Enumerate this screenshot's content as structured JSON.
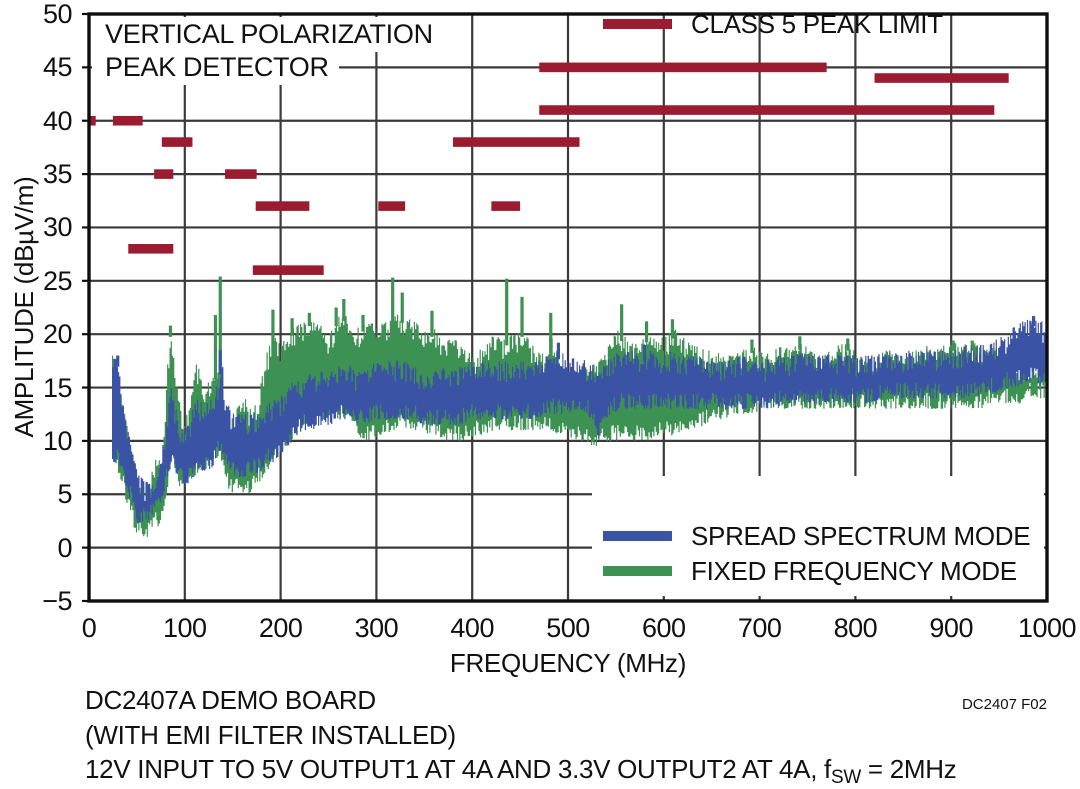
{
  "chart_data": {
    "type": "line",
    "title_lines": [
      "VERTICAL POLARIZATION",
      "PEAK DETECTOR"
    ],
    "xlabel": "FREQUENCY (MHz)",
    "ylabel": "AMPLITUDE (dBµV/m)",
    "xlim": [
      0,
      1000
    ],
    "ylim": [
      -5,
      50
    ],
    "x_ticks": [
      0,
      100,
      200,
      300,
      400,
      500,
      600,
      700,
      800,
      900,
      1000
    ],
    "y_ticks": [
      -5,
      0,
      5,
      10,
      15,
      20,
      25,
      30,
      35,
      40,
      45,
      50
    ],
    "y_tick_labels": [
      "−5",
      "0",
      "5",
      "10",
      "15",
      "20",
      "25",
      "30",
      "35",
      "40",
      "45",
      "50"
    ],
    "grid": true,
    "legend_position": "lower right",
    "legend": [
      {
        "label": "CLASS 5 PEAK LIMIT",
        "color": "#9B1B31"
      },
      {
        "label": "SPREAD SPECTRUM MODE",
        "color": "#3B53A5"
      },
      {
        "label": "FIXED FREQUENCY MODE",
        "color": "#3D9152"
      }
    ],
    "class5_peak_limit_segments": [
      {
        "f1": 0,
        "f2": 7,
        "level": 40
      },
      {
        "f1": 25,
        "f2": 56,
        "level": 40
      },
      {
        "f1": 41,
        "f2": 88,
        "level": 28
      },
      {
        "f1": 68,
        "f2": 88,
        "level": 35
      },
      {
        "f1": 76,
        "f2": 108,
        "level": 38
      },
      {
        "f1": 142,
        "f2": 175,
        "level": 35
      },
      {
        "f1": 171,
        "f2": 245,
        "level": 26
      },
      {
        "f1": 174,
        "f2": 230,
        "level": 32
      },
      {
        "f1": 302,
        "f2": 330,
        "level": 32
      },
      {
        "f1": 380,
        "f2": 512,
        "level": 38
      },
      {
        "f1": 420,
        "f2": 450,
        "level": 32
      },
      {
        "f1": 470,
        "f2": 770,
        "level": 45
      },
      {
        "f1": 470,
        "f2": 945,
        "level": 41
      },
      {
        "f1": 820,
        "f2": 960,
        "level": 44
      }
    ],
    "fixed_frequency_envelope": [
      [
        24,
        9,
        18
      ],
      [
        30,
        7,
        15
      ],
      [
        36,
        5,
        13
      ],
      [
        42,
        3,
        10
      ],
      [
        48,
        1.5,
        7
      ],
      [
        54,
        1,
        6
      ],
      [
        62,
        1,
        5.5
      ],
      [
        70,
        2,
        9.6
      ],
      [
        76,
        2,
        8
      ],
      [
        82,
        6,
        18
      ],
      [
        85,
        8,
        20.5
      ],
      [
        90,
        6,
        16
      ],
      [
        97,
        5,
        12
      ],
      [
        104,
        6,
        13
      ],
      [
        112,
        7,
        17.5
      ],
      [
        120,
        7,
        15
      ],
      [
        128,
        8,
        16
      ],
      [
        136,
        8,
        17
      ],
      [
        141,
        7,
        14
      ],
      [
        146,
        5,
        12
      ],
      [
        153,
        5,
        13
      ],
      [
        160,
        5,
        14.5
      ],
      [
        168,
        5,
        13
      ],
      [
        176,
        6,
        14
      ],
      [
        184,
        7,
        18
      ],
      [
        192,
        8,
        20
      ],
      [
        200,
        9,
        19
      ],
      [
        210,
        10,
        20.5
      ],
      [
        220,
        11,
        21
      ],
      [
        230,
        12,
        21.5
      ],
      [
        240,
        12,
        21
      ],
      [
        250,
        12,
        20
      ],
      [
        258,
        12,
        21.5
      ],
      [
        266,
        12,
        22
      ],
      [
        276,
        11,
        20.5
      ],
      [
        286,
        10,
        21
      ],
      [
        296,
        10,
        21
      ],
      [
        306,
        10.5,
        21
      ],
      [
        316,
        11,
        21.5
      ],
      [
        324,
        11,
        22
      ],
      [
        332,
        11,
        21.5
      ],
      [
        342,
        11,
        21
      ],
      [
        352,
        10.5,
        20.5
      ],
      [
        362,
        10.5,
        20.5
      ],
      [
        372,
        10,
        19.5
      ],
      [
        382,
        10,
        19.5
      ],
      [
        392,
        10,
        18.5
      ],
      [
        402,
        10.5,
        18
      ],
      [
        412,
        10.5,
        19
      ],
      [
        422,
        11,
        20
      ],
      [
        432,
        11,
        19.5
      ],
      [
        442,
        11,
        20
      ],
      [
        452,
        11,
        20.5
      ],
      [
        462,
        11,
        19
      ],
      [
        472,
        11,
        18
      ],
      [
        482,
        11,
        20
      ],
      [
        492,
        10.5,
        17
      ],
      [
        502,
        10,
        16.5
      ],
      [
        512,
        10,
        16
      ],
      [
        522,
        9.5,
        17
      ],
      [
        532,
        9.5,
        17.5
      ],
      [
        542,
        10,
        19
      ],
      [
        552,
        10,
        20.5
      ],
      [
        562,
        10,
        19.5
      ],
      [
        572,
        10,
        19.5
      ],
      [
        582,
        10,
        20
      ],
      [
        592,
        10.5,
        19.5
      ],
      [
        602,
        10.5,
        20
      ],
      [
        612,
        10.5,
        20.5
      ],
      [
        622,
        11,
        19.5
      ],
      [
        632,
        11,
        19
      ],
      [
        642,
        11.5,
        18.5
      ],
      [
        652,
        12,
        18.5
      ],
      [
        662,
        12,
        18
      ],
      [
        672,
        12.5,
        18
      ],
      [
        682,
        12.5,
        18.5
      ],
      [
        692,
        12.5,
        19
      ],
      [
        702,
        13,
        18.5
      ],
      [
        712,
        13,
        18.5
      ],
      [
        722,
        13,
        19
      ],
      [
        732,
        13,
        18.5
      ],
      [
        742,
        13,
        19.3
      ],
      [
        752,
        13,
        18.5
      ],
      [
        762,
        13,
        18
      ],
      [
        772,
        13,
        18.5
      ],
      [
        782,
        13,
        19
      ],
      [
        792,
        13,
        19.2
      ],
      [
        802,
        13,
        18
      ],
      [
        812,
        13,
        18
      ],
      [
        822,
        13,
        18
      ],
      [
        832,
        13,
        18.5
      ],
      [
        842,
        13,
        18
      ],
      [
        852,
        13,
        18
      ],
      [
        862,
        13,
        18.5
      ],
      [
        872,
        13,
        19
      ],
      [
        882,
        13,
        18.5
      ],
      [
        892,
        13,
        19
      ],
      [
        902,
        13,
        19.2
      ],
      [
        912,
        13,
        19
      ],
      [
        922,
        13,
        19.2
      ],
      [
        932,
        13,
        19
      ],
      [
        942,
        13.5,
        19
      ],
      [
        952,
        13.5,
        18.5
      ],
      [
        962,
        13.5,
        18
      ],
      [
        972,
        13.5,
        17.5
      ],
      [
        982,
        14,
        17.5
      ],
      [
        1000,
        14,
        17
      ]
    ],
    "fixed_frequency_spikes": [
      [
        85,
        20.8
      ],
      [
        132,
        21.8
      ],
      [
        137,
        25.4
      ],
      [
        192,
        22.3
      ],
      [
        212,
        21.5
      ],
      [
        230,
        22
      ],
      [
        258,
        22.5
      ],
      [
        266,
        23.3
      ],
      [
        286,
        21.8
      ],
      [
        317,
        25.3
      ],
      [
        327,
        23.9
      ],
      [
        358,
        22.2
      ],
      [
        436,
        25.2
      ],
      [
        452,
        23.5
      ],
      [
        482,
        22
      ],
      [
        556,
        22.8
      ],
      [
        582,
        21.2
      ],
      [
        609,
        21.4
      ],
      [
        692,
        19.5
      ],
      [
        742,
        19.8
      ],
      [
        792,
        19.6
      ],
      [
        902,
        19.4
      ],
      [
        922,
        19.4
      ]
    ],
    "spread_spectrum_envelope": [
      [
        24,
        8,
        17.7
      ],
      [
        30,
        8,
        17.7
      ],
      [
        34,
        7,
        14
      ],
      [
        40,
        5,
        11
      ],
      [
        45,
        4,
        9
      ],
      [
        50,
        2.2,
        7
      ],
      [
        56,
        2.4,
        6.5
      ],
      [
        62,
        2.4,
        6
      ],
      [
        68,
        3,
        6.5
      ],
      [
        74,
        4,
        8
      ],
      [
        80,
        6,
        12
      ],
      [
        85,
        8,
        15.5
      ],
      [
        90,
        7,
        13
      ],
      [
        97,
        6,
        11
      ],
      [
        104,
        6,
        12
      ],
      [
        112,
        7,
        14
      ],
      [
        120,
        7,
        13.5
      ],
      [
        128,
        7.5,
        14
      ],
      [
        136,
        9,
        16
      ],
      [
        138,
        9,
        18
      ],
      [
        142,
        8,
        14
      ],
      [
        148,
        7,
        13
      ],
      [
        155,
        6.5,
        12.5
      ],
      [
        162,
        6.5,
        12.5
      ],
      [
        170,
        7,
        12.5
      ],
      [
        178,
        7,
        13
      ],
      [
        186,
        8,
        13.5
      ],
      [
        194,
        8,
        14
      ],
      [
        202,
        9,
        14.5
      ],
      [
        212,
        10,
        15.5
      ],
      [
        222,
        11,
        16
      ],
      [
        232,
        11,
        16.5
      ],
      [
        242,
        11.5,
        16.5
      ],
      [
        252,
        11.5,
        16.5
      ],
      [
        260,
        12,
        17
      ],
      [
        268,
        12,
        17.5
      ],
      [
        278,
        11.5,
        16.5
      ],
      [
        288,
        11.5,
        16.5
      ],
      [
        298,
        12,
        17.5
      ],
      [
        308,
        12,
        18
      ],
      [
        318,
        12,
        17.5
      ],
      [
        328,
        12,
        17.5
      ],
      [
        338,
        12,
        17
      ],
      [
        348,
        11.5,
        16.5
      ],
      [
        358,
        11.5,
        16.5
      ],
      [
        368,
        11.5,
        17
      ],
      [
        378,
        11.5,
        16.5
      ],
      [
        388,
        11.5,
        17
      ],
      [
        398,
        12,
        17.5
      ],
      [
        408,
        12,
        17.5
      ],
      [
        418,
        12,
        17.5
      ],
      [
        428,
        12,
        17.5
      ],
      [
        438,
        12,
        17.5
      ],
      [
        448,
        12,
        17.5
      ],
      [
        458,
        12,
        17.5
      ],
      [
        468,
        12,
        17.5
      ],
      [
        478,
        12.5,
        18
      ],
      [
        488,
        12.5,
        18.5
      ],
      [
        498,
        12.5,
        18
      ],
      [
        508,
        13,
        18
      ],
      [
        518,
        12.5,
        17.5
      ],
      [
        526,
        12,
        17.5
      ],
      [
        531,
        10,
        17
      ],
      [
        536,
        12,
        17.5
      ],
      [
        546,
        12.5,
        18
      ],
      [
        556,
        13,
        18.5
      ],
      [
        566,
        13,
        18.5
      ],
      [
        576,
        13,
        18
      ],
      [
        586,
        13,
        18.5
      ],
      [
        596,
        13,
        18
      ],
      [
        606,
        13,
        18.5
      ],
      [
        616,
        13,
        18
      ],
      [
        626,
        13,
        18
      ],
      [
        636,
        13,
        18
      ],
      [
        646,
        13,
        17.5
      ],
      [
        656,
        13,
        17.5
      ],
      [
        666,
        13,
        17.5
      ],
      [
        676,
        13,
        18
      ],
      [
        686,
        13,
        18
      ],
      [
        696,
        13,
        17.5
      ],
      [
        706,
        13,
        17.5
      ],
      [
        716,
        13,
        18
      ],
      [
        726,
        13.5,
        18
      ],
      [
        736,
        13.5,
        18
      ],
      [
        746,
        13.5,
        18.5
      ],
      [
        756,
        13.5,
        18
      ],
      [
        766,
        13.5,
        18
      ],
      [
        776,
        13.5,
        18.5
      ],
      [
        786,
        13.5,
        18
      ],
      [
        796,
        13.5,
        18
      ],
      [
        806,
        13.5,
        18
      ],
      [
        816,
        13.5,
        18
      ],
      [
        826,
        14,
        18.5
      ],
      [
        836,
        14,
        18.5
      ],
      [
        846,
        14,
        18
      ],
      [
        856,
        14,
        18.5
      ],
      [
        866,
        14,
        19
      ],
      [
        876,
        14,
        18.5
      ],
      [
        886,
        14,
        18.5
      ],
      [
        896,
        14,
        18.5
      ],
      [
        906,
        14,
        18.5
      ],
      [
        916,
        14,
        19
      ],
      [
        926,
        14,
        19
      ],
      [
        936,
        14.5,
        19
      ],
      [
        946,
        14.5,
        19.5
      ],
      [
        956,
        15,
        20
      ],
      [
        966,
        15,
        20.8
      ],
      [
        976,
        15.5,
        21.3
      ],
      [
        986,
        15.5,
        21.5
      ],
      [
        1000,
        15,
        21
      ]
    ],
    "spread_spectrum_spikes": [
      [
        30,
        18
      ],
      [
        137,
        18.5
      ],
      [
        490,
        19.2
      ],
      [
        580,
        19
      ],
      [
        986,
        21.7
      ]
    ]
  },
  "caption": {
    "line1": "DC2407A DEMO BOARD",
    "line2": "(WITH EMI FILTER INSTALLED)",
    "line3_pre": "12V INPUT TO 5V OUTPUT1 AT 4A AND 3.3V OUTPUT2 AT 4A, f",
    "line3_sub": "SW",
    "line3_post": " = 2MHz"
  },
  "annotations": {
    "figure_number": "DC2407 F02"
  },
  "colors": {
    "limit_red": "#9B1B31",
    "spread_blue": "#3B53A5",
    "fixed_green": "#3D9152",
    "grid": "#3A3A3A",
    "frame": "#0E0E0E",
    "background": "#FFFFFF"
  }
}
